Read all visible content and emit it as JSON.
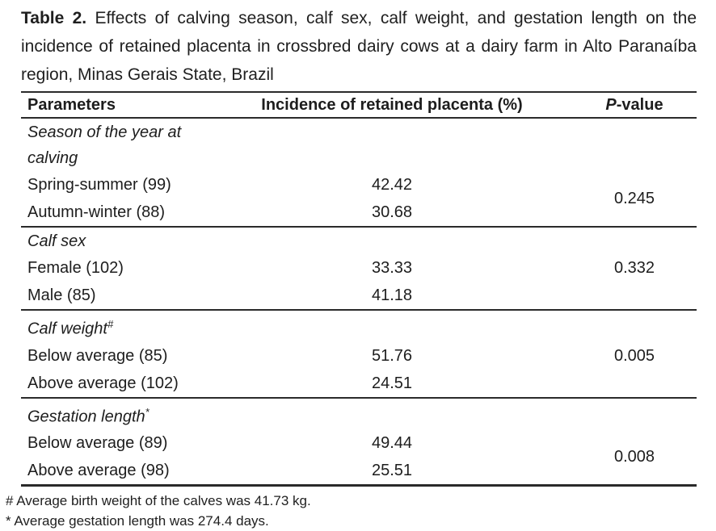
{
  "caption": {
    "label": "Table 2.",
    "text": "Effects of calving season, calf sex, calf weight, and gestation length on the incidence of retained placenta in crossbred dairy cows at a dairy farm in Alto Paranaíba region, Minas Gerais State, Brazil"
  },
  "table": {
    "columns": {
      "parameters": "Parameters",
      "incidence": "Incidence of retained placenta (%)",
      "p_value_italic": "P",
      "p_value_rest": "-value"
    },
    "sections": [
      {
        "heading": "Season of the year at calving",
        "heading_sup": "",
        "rows": [
          {
            "label": "Spring-summer (99)",
            "incidence": "42.42"
          },
          {
            "label": "Autumn-winter (88)",
            "incidence": "30.68"
          }
        ],
        "p_value": "0.245",
        "p_alignment": "between-rows"
      },
      {
        "heading": "Calf sex",
        "heading_sup": "",
        "rows": [
          {
            "label": "Female (102)",
            "incidence": "33.33"
          },
          {
            "label": "Male (85)",
            "incidence": "41.18"
          }
        ],
        "p_value": "0.332",
        "p_alignment": "first-row"
      },
      {
        "heading": "Calf weight",
        "heading_sup": "#",
        "rows": [
          {
            "label": "Below average (85)",
            "incidence": "51.76"
          },
          {
            "label": "Above average (102)",
            "incidence": "24.51"
          }
        ],
        "p_value": "0.005",
        "p_alignment": "first-row"
      },
      {
        "heading": "Gestation length",
        "heading_sup": "*",
        "rows": [
          {
            "label": "Below average (89)",
            "incidence": "49.44"
          },
          {
            "label": "Above average (98)",
            "incidence": "25.51"
          }
        ],
        "p_value": "0.008",
        "p_alignment": "between-rows"
      }
    ],
    "footnotes": [
      "# Average birth weight of the calves was 41.73 kg.",
      "* Average gestation length was 274.4 days."
    ]
  },
  "colors": {
    "background": "#ffffff",
    "text": "#1d1d1d",
    "rule": "#2a2a2a"
  }
}
